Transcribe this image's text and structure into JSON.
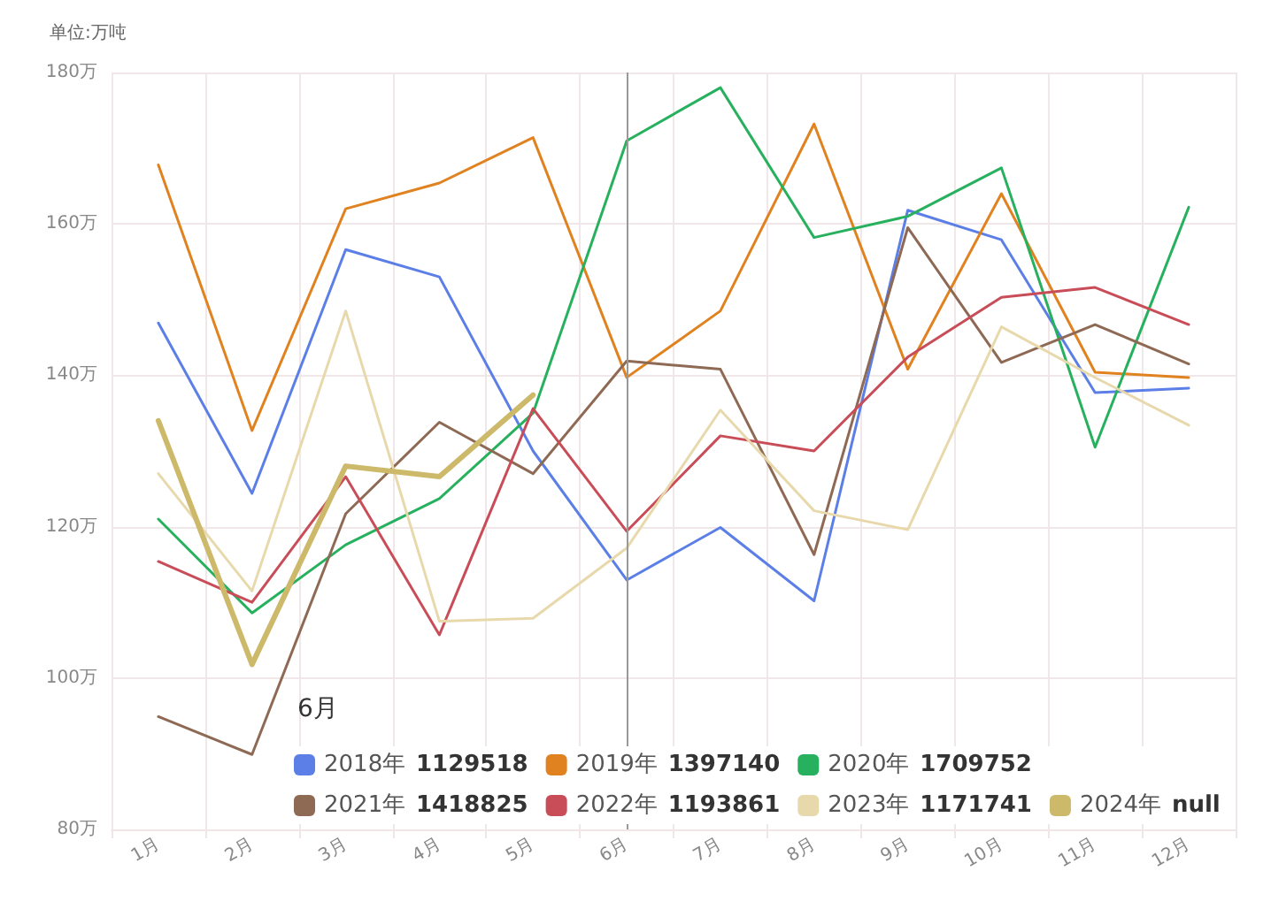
{
  "chart_data": {
    "type": "line",
    "ylabel": "单位:万吨",
    "legend_title": "6月",
    "categories": [
      "1月",
      "2月",
      "3月",
      "4月",
      "5月",
      "6月",
      "7月",
      "8月",
      "9月",
      "10月",
      "11月",
      "12月"
    ],
    "series": [
      {
        "name": "2018年",
        "color": "#5b7fe6",
        "values": [
          146.9,
          124.4,
          156.6,
          153,
          130,
          112.95,
          119.9,
          110.2,
          161.8,
          157.9,
          137.7,
          138.3
        ]
      },
      {
        "name": "2019年",
        "color": "#e0821f",
        "values": [
          167.8,
          132.7,
          162,
          165.4,
          171.4,
          139.71,
          148.5,
          173.2,
          140.8,
          164,
          140.4,
          139.7
        ]
      },
      {
        "name": "2020年",
        "color": "#27b15e",
        "values": [
          121,
          108.6,
          117.6,
          123.7,
          135,
          170.98,
          178,
          158.2,
          161,
          167.4,
          130.5,
          162.2
        ]
      },
      {
        "name": "2021年",
        "color": "#8e6a55",
        "values": [
          94.9,
          89.9,
          121.7,
          133.8,
          127,
          141.88,
          140.8,
          116.3,
          159.5,
          141.7,
          146.7,
          141.5
        ]
      },
      {
        "name": "2022年",
        "color": "#c94d58",
        "values": [
          115.4,
          110,
          126.6,
          105.7,
          135.6,
          119.39,
          132,
          130,
          142.4,
          150.3,
          151.6,
          146.7
        ]
      },
      {
        "name": "2023年",
        "color": "#e8d9ad",
        "values": [
          127,
          111.5,
          148.5,
          107.5,
          107.9,
          117.17,
          135.4,
          122.1,
          119.6,
          146.4,
          139.7,
          133.4
        ]
      },
      {
        "name": "2024年",
        "color": "#cdb96a",
        "values": [
          134,
          101.8,
          128,
          126.6,
          137.4,
          null,
          null,
          null,
          null,
          null,
          null,
          null
        ]
      }
    ],
    "annotations": [
      "1129518",
      "1397140",
      "1709752",
      "1418825",
      "1193861",
      "1171741",
      "null"
    ],
    "ylim": [
      80,
      180
    ],
    "yticks": [
      {
        "value": 80,
        "label": "80万"
      },
      {
        "value": 100,
        "label": "100万"
      },
      {
        "value": 120,
        "label": "120万"
      },
      {
        "value": 140,
        "label": "140万"
      },
      {
        "value": 160,
        "label": "160万"
      },
      {
        "value": 180,
        "label": "180万"
      }
    ],
    "ref_lines": [
      {
        "axis": "x",
        "value": "6月",
        "color": "#999999"
      }
    ],
    "grid": true,
    "legend": "bottom left",
    "marker": "none",
    "line_style": "solid"
  }
}
